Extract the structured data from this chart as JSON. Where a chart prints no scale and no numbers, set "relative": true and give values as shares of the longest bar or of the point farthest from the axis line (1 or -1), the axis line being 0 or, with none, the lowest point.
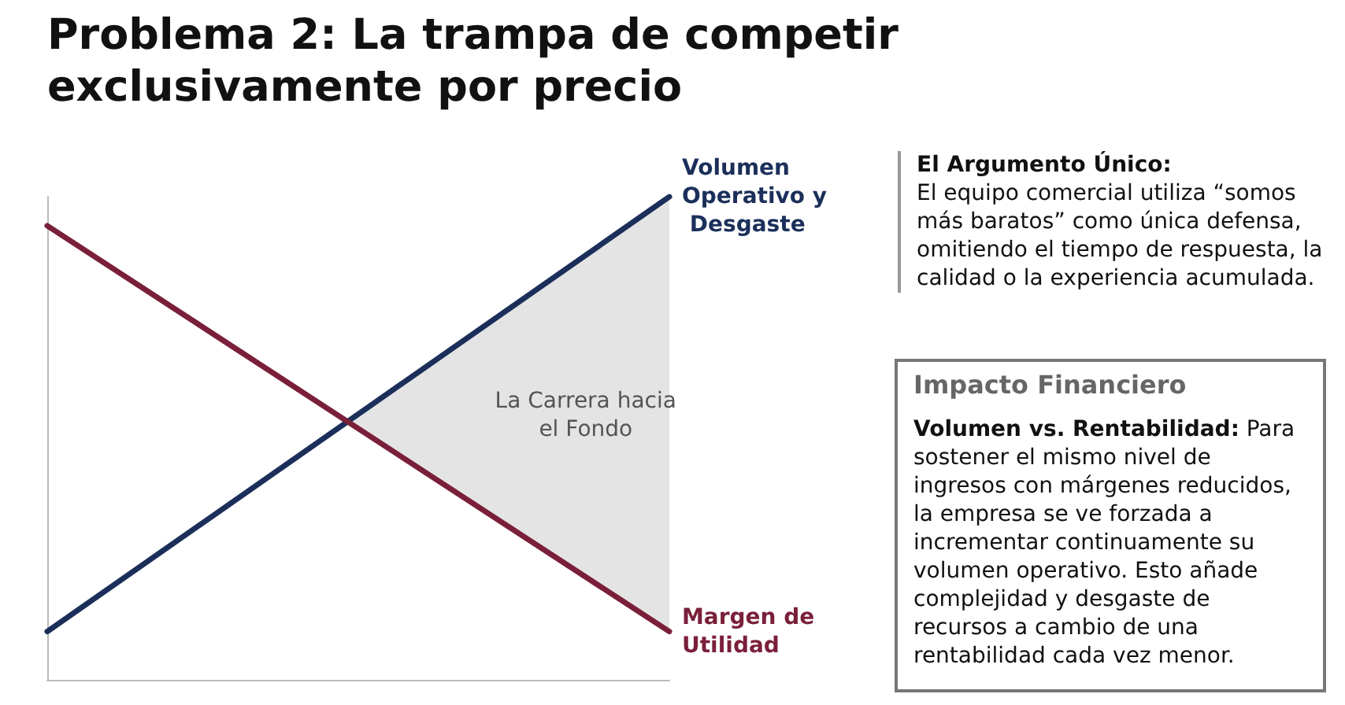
{
  "chart_data": {
    "type": "line",
    "title": "Problema 2: La trampa de competir exclusivamente por precio",
    "relative": true,
    "categories": [
      null,
      null
    ],
    "series": [
      {
        "name": "Volumen Operativo y Desgaste",
        "color": "#1b2f5a",
        "values": [
          0.1,
          1
        ]
      },
      {
        "name": "Margen de Utilidad",
        "color": "#7a1f3a",
        "values": [
          0.94,
          0.1
        ]
      }
    ],
    "annotations": [
      "La Carrera hacia el Fondo",
      "El Argumento Único:",
      "El equipo comercial utiliza “somos más baratos” como única defensa, omitiendo el tiempo de respuesta, la calidad o la experiencia acumulada.",
      "Impacto Financiero",
      "Volumen vs. Rentabilidad:",
      "Para sostener el mismo nivel de ingresos con márgenes reducidos, la empresa se ve forzada a incrementar continuamente su volumen operativo. Esto añade complejidad y desgaste de recursos a cambio de una rentabilidad cada vez menor."
    ],
    "legend": false,
    "grid": false,
    "marker": "none",
    "line_style": "solid"
  }
}
